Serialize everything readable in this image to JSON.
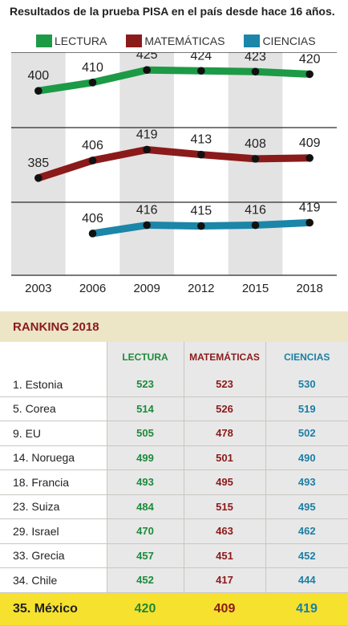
{
  "title": "Resultados de la prueba PISA en el país desde hace 16 años.",
  "legend": [
    {
      "label": "LECTURA",
      "color": "#1d9a46"
    },
    {
      "label": "MATEMÁTICAS",
      "color": "#8b1a1a"
    },
    {
      "label": "CIENCIAS",
      "color": "#1b86a8"
    }
  ],
  "chart_data": {
    "type": "line",
    "categories": [
      "2003",
      "2006",
      "2009",
      "2012",
      "2015",
      "2018"
    ],
    "series": [
      {
        "name": "LECTURA",
        "color": "#1d9a46",
        "values": [
          400,
          410,
          425,
          424,
          423,
          420
        ]
      },
      {
        "name": "MATEMÁTICAS",
        "color": "#8b1a1a",
        "values": [
          385,
          406,
          419,
          413,
          408,
          409
        ]
      },
      {
        "name": "CIENCIAS",
        "color": "#1b86a8",
        "values": [
          null,
          406,
          416,
          415,
          416,
          419
        ]
      }
    ],
    "grid": true,
    "legend_position": "top"
  },
  "ranking": {
    "title": "RANKING 2018",
    "columns": [
      "LECTURA",
      "MATEMÁTICAS",
      "CIENCIAS"
    ],
    "rows": [
      {
        "name": "1. Estonia",
        "lectura": "523",
        "matematicas": "523",
        "ciencias": "530"
      },
      {
        "name": "5. Corea",
        "lectura": "514",
        "matematicas": "526",
        "ciencias": "519"
      },
      {
        "name": "9. EU",
        "lectura": "505",
        "matematicas": "478",
        "ciencias": "502"
      },
      {
        "name": "14. Noruega",
        "lectura": "499",
        "matematicas": "501",
        "ciencias": "490"
      },
      {
        "name": "18. Francia",
        "lectura": "493",
        "matematicas": "495",
        "ciencias": "493"
      },
      {
        "name": "23. Suiza",
        "lectura": "484",
        "matematicas": "515",
        "ciencias": "495"
      },
      {
        "name": "29. Israel",
        "lectura": "470",
        "matematicas": "463",
        "ciencias": "462"
      },
      {
        "name": "33. Grecia",
        "lectura": "457",
        "matematicas": "451",
        "ciencias": "452"
      },
      {
        "name": "34. Chile",
        "lectura": "452",
        "matematicas": "417",
        "ciencias": "444"
      }
    ],
    "highlight": {
      "name": "35. México",
      "lectura": "420",
      "matematicas": "409",
      "ciencias": "419",
      "color": "#f6e12e"
    }
  }
}
